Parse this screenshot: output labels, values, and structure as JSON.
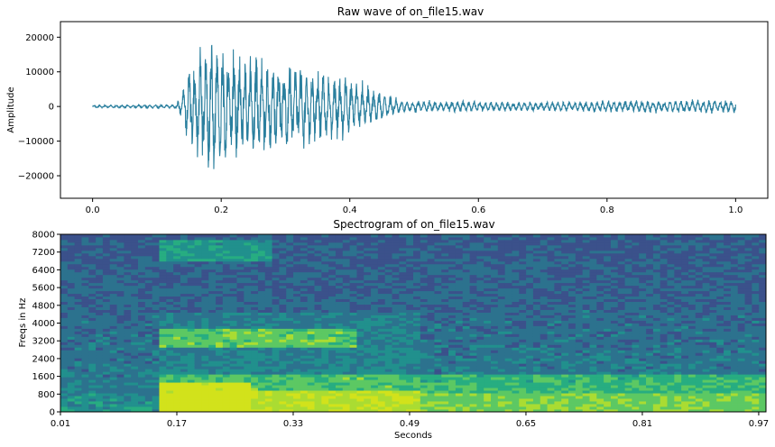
{
  "chart_data": [
    {
      "type": "line",
      "title": "Raw wave of on_file15.wav",
      "xlabel": "",
      "ylabel": "Amplitude",
      "xlim": [
        -0.05,
        1.05
      ],
      "ylim": [
        -26500,
        24500
      ],
      "xticks": [
        "0.0",
        "0.2",
        "0.4",
        "0.6",
        "0.8",
        "1.0"
      ],
      "xtick_values": [
        0.0,
        0.2,
        0.4,
        0.6,
        0.8,
        1.0
      ],
      "yticks": [
        "20000",
        "10000",
        "0",
        "−10000",
        "−20000"
      ],
      "ytick_values": [
        20000,
        10000,
        0,
        -10000,
        -20000
      ],
      "line_color": "#2a7f9e",
      "grid": false,
      "envelope": {
        "x": [
          0.0,
          0.13,
          0.14,
          0.15,
          0.17,
          0.185,
          0.2,
          0.25,
          0.3,
          0.35,
          0.4,
          0.44,
          0.48,
          0.5,
          0.6,
          0.7,
          0.8,
          0.9,
          1.0
        ],
        "amplitude": [
          400,
          600,
          5000,
          12000,
          18000,
          22000,
          18000,
          16000,
          14000,
          12000,
          9000,
          5000,
          2000,
          1800,
          1500,
          1400,
          1800,
          1900,
          2000
        ]
      }
    },
    {
      "type": "heatmap",
      "title": "Spectrogram of on_file15.wav",
      "xlabel": "Seconds",
      "ylabel": "Freqs in Hz",
      "xlim": [
        0.01,
        0.98
      ],
      "ylim": [
        0,
        8000
      ],
      "xticks": [
        "0.01",
        "0.17",
        "0.33",
        "0.49",
        "0.65",
        "0.81",
        "0.97"
      ],
      "xtick_values": [
        0.01,
        0.17,
        0.33,
        0.49,
        0.65,
        0.81,
        0.97
      ],
      "yticks": [
        "8000",
        "7200",
        "6400",
        "5600",
        "4800",
        "4000",
        "3200",
        "2400",
        "1600",
        "800",
        "0"
      ],
      "ytick_values": [
        8000,
        7200,
        6400,
        5600,
        4800,
        4000,
        3200,
        2400,
        1600,
        800,
        0
      ],
      "colormap": [
        "#3b518b",
        "#2c728e",
        "#21908d",
        "#27ad81",
        "#5cc863",
        "#aadc32",
        "#d2e21b"
      ],
      "speech_onset_seconds": 0.15,
      "speech_offset_seconds": 0.5
    }
  ]
}
